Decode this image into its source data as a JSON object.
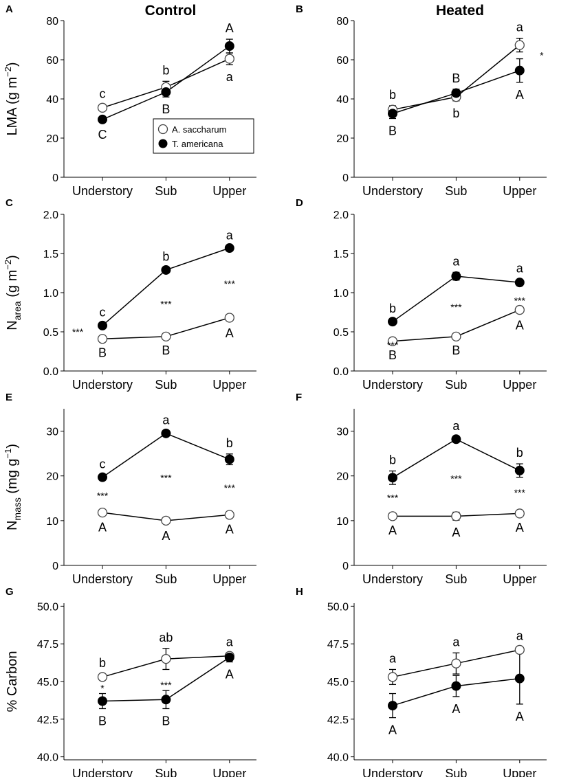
{
  "columns": [
    "Control",
    "Heated"
  ],
  "legend": {
    "series": [
      "A. saccharum",
      "T. americana"
    ]
  },
  "row_ylabels": [
    {
      "text": "LMA (g m",
      "sup": "−2",
      "tail": ")"
    },
    {
      "text": "N",
      "sub": "area",
      "tail": " (g m",
      "sup": "−2",
      "tail2": ")"
    },
    {
      "text": "N",
      "sub": "mass",
      "tail": " (mg g",
      "sup": "−1",
      "tail2": ")"
    },
    {
      "text": "% Carbon"
    }
  ],
  "chart_data": [
    {
      "panel": "A",
      "type": "line",
      "column": "Control",
      "categories": [
        "Understory",
        "Sub",
        "Upper"
      ],
      "ylim": [
        0,
        80
      ],
      "yticks": [
        0,
        20,
        40,
        60,
        80
      ],
      "ylabel": "LMA (g m−2)",
      "series": [
        {
          "name": "A. saccharum",
          "marker": "open",
          "values": [
            35.5,
            46,
            60.5
          ],
          "err": [
            1.5,
            3,
            3
          ],
          "letters": [
            "c",
            "b",
            "a"
          ]
        },
        {
          "name": "T. americana",
          "marker": "filled",
          "values": [
            29.5,
            43.5,
            67
          ],
          "err": [
            1.5,
            2.5,
            3.5
          ],
          "letters": [
            "C",
            "B",
            "A"
          ]
        }
      ],
      "stars": [
        "",
        "",
        ""
      ]
    },
    {
      "panel": "B",
      "type": "line",
      "column": "Heated",
      "categories": [
        "Understory",
        "Sub",
        "Upper"
      ],
      "ylim": [
        0,
        80
      ],
      "yticks": [
        0,
        20,
        40,
        60,
        80
      ],
      "ylabel": "LMA (g m−2)",
      "series": [
        {
          "name": "A. saccharum",
          "marker": "open",
          "values": [
            34.5,
            41,
            67.5
          ],
          "err": [
            2,
            2,
            3.5
          ],
          "letters": [
            "b",
            "b",
            "a"
          ]
        },
        {
          "name": "T. americana",
          "marker": "filled",
          "values": [
            32.5,
            43,
            54.5
          ],
          "err": [
            2.5,
            2,
            6
          ],
          "letters": [
            "B",
            "B",
            "A"
          ]
        }
      ],
      "stars": [
        "",
        "",
        "*"
      ]
    },
    {
      "panel": "C",
      "type": "line",
      "column": "Control",
      "categories": [
        "Understory",
        "Sub",
        "Upper"
      ],
      "ylim": [
        0,
        2
      ],
      "yticks": [
        0.0,
        0.5,
        1.0,
        1.5,
        2.0
      ],
      "ylabel": "Narea (g m−2)",
      "series": [
        {
          "name": "A. saccharum",
          "marker": "open",
          "values": [
            0.41,
            0.44,
            0.68
          ],
          "err": [
            0.02,
            0.02,
            0.04
          ],
          "letters": [
            "B",
            "B",
            "A"
          ]
        },
        {
          "name": "T. americana",
          "marker": "filled",
          "values": [
            0.58,
            1.29,
            1.57
          ],
          "err": [
            0.03,
            0.03,
            0.02
          ],
          "letters": [
            "c",
            "b",
            "a"
          ]
        }
      ],
      "stars": [
        "***",
        "***",
        "***"
      ]
    },
    {
      "panel": "D",
      "type": "line",
      "column": "Heated",
      "categories": [
        "Understory",
        "Sub",
        "Upper"
      ],
      "ylim": [
        0,
        2
      ],
      "yticks": [
        0.0,
        0.5,
        1.0,
        1.5,
        2.0
      ],
      "ylabel": "Narea (g m−2)",
      "series": [
        {
          "name": "A. saccharum",
          "marker": "open",
          "values": [
            0.38,
            0.44,
            0.78
          ],
          "err": [
            0.02,
            0.02,
            0.04
          ],
          "letters": [
            "B",
            "B",
            "A"
          ]
        },
        {
          "name": "T. americana",
          "marker": "filled",
          "values": [
            0.63,
            1.21,
            1.13
          ],
          "err": [
            0.03,
            0.05,
            0.04
          ],
          "letters": [
            "b",
            "a",
            "a"
          ]
        }
      ],
      "stars": [
        "***",
        "***",
        "***"
      ]
    },
    {
      "panel": "E",
      "type": "line",
      "column": "Control",
      "categories": [
        "Understory",
        "Sub",
        "Upper"
      ],
      "ylim": [
        0,
        35
      ],
      "yticks": [
        0,
        10,
        20,
        30
      ],
      "ylabel": "Nmass (mg g−1)",
      "series": [
        {
          "name": "A. saccharum",
          "marker": "open",
          "values": [
            11.8,
            10,
            11.3
          ],
          "err": [
            0.5,
            0.6,
            0.5
          ],
          "letters": [
            "A",
            "A",
            "A"
          ]
        },
        {
          "name": "T. americana",
          "marker": "filled",
          "values": [
            19.7,
            29.5,
            23.7
          ],
          "err": [
            0.5,
            0.5,
            1.2
          ],
          "letters": [
            "c",
            "a",
            "b"
          ]
        }
      ],
      "stars": [
        "***",
        "***",
        "***"
      ]
    },
    {
      "panel": "F",
      "type": "line",
      "column": "Heated",
      "categories": [
        "Understory",
        "Sub",
        "Upper"
      ],
      "ylim": [
        0,
        35
      ],
      "yticks": [
        0,
        10,
        20,
        30
      ],
      "ylabel": "Nmass (mg g−1)",
      "series": [
        {
          "name": "A. saccharum",
          "marker": "open",
          "values": [
            11,
            11,
            11.6
          ],
          "err": [
            0.4,
            0.9,
            0.4
          ],
          "letters": [
            "A",
            "A",
            "A"
          ]
        },
        {
          "name": "T. americana",
          "marker": "filled",
          "values": [
            19.6,
            28.2,
            21.2
          ],
          "err": [
            1.5,
            0.5,
            1.5
          ],
          "letters": [
            "b",
            "a",
            "b"
          ]
        }
      ],
      "stars": [
        "***",
        "***",
        "***"
      ]
    },
    {
      "panel": "G",
      "type": "line",
      "column": "Control",
      "categories": [
        "Understory",
        "Sub",
        "Upper"
      ],
      "ylim": [
        39.8,
        50.2
      ],
      "yticks": [
        40.0,
        42.5,
        45.0,
        47.5,
        50.0
      ],
      "ylabel": "% Carbon",
      "series": [
        {
          "name": "A. saccharum",
          "marker": "open",
          "values": [
            45.3,
            46.5,
            46.7
          ],
          "err": [
            0.2,
            0.7,
            0.2
          ],
          "letters": [
            "b",
            "ab",
            "a"
          ]
        },
        {
          "name": "T. americana",
          "marker": "filled",
          "values": [
            43.7,
            43.8,
            46.6
          ],
          "err": [
            0.5,
            0.6,
            0.3
          ],
          "letters": [
            "B",
            "B",
            "A"
          ]
        }
      ],
      "stars": [
        "*",
        "***",
        ""
      ]
    },
    {
      "panel": "H",
      "type": "line",
      "column": "Heated",
      "categories": [
        "Understory",
        "Sub",
        "Upper"
      ],
      "ylim": [
        39.8,
        50.2
      ],
      "yticks": [
        40.0,
        42.5,
        45.0,
        47.5,
        50.0
      ],
      "ylabel": "% Carbon",
      "series": [
        {
          "name": "A. saccharum",
          "marker": "open",
          "values": [
            45.3,
            46.2,
            47.1
          ],
          "err": [
            0.5,
            0.7,
            0.2
          ],
          "letters": [
            "a",
            "a",
            "a"
          ]
        },
        {
          "name": "T. americana",
          "marker": "filled",
          "values": [
            43.4,
            44.7,
            45.2
          ],
          "err": [
            0.8,
            0.7,
            1.7
          ],
          "letters": [
            "A",
            "A",
            "A"
          ]
        }
      ],
      "stars": [
        "",
        "",
        ""
      ]
    }
  ]
}
